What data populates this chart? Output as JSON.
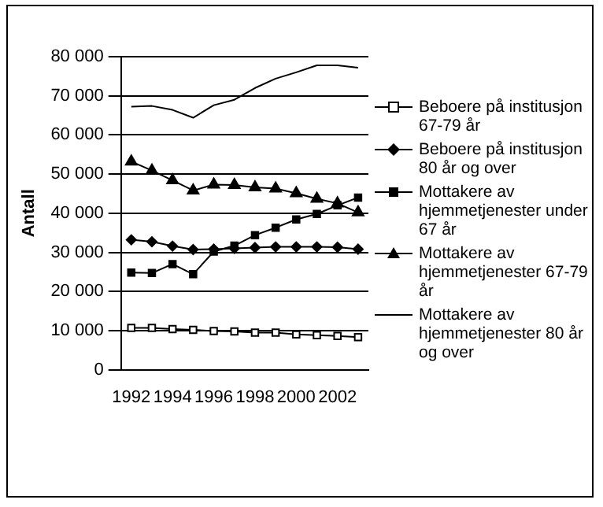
{
  "chart_data": {
    "type": "line",
    "ylabel": "Antall",
    "x": [
      1992,
      1993,
      1994,
      1995,
      1996,
      1997,
      1998,
      1999,
      2000,
      2001,
      2002,
      2003
    ],
    "xlim": [
      1991.5,
      2003.5
    ],
    "xticks": [
      1992,
      1994,
      1996,
      1998,
      2000,
      2002
    ],
    "ylim": [
      0,
      80000
    ],
    "yticks": [
      0,
      {
        "value": 10000,
        "label": "10 000"
      },
      {
        "value": 20000,
        "label": "20 000"
      },
      {
        "value": 30000,
        "label": "30 000"
      },
      {
        "value": 40000,
        "label": "40 000"
      },
      {
        "value": 50000,
        "label": "50 000"
      },
      {
        "value": 60000,
        "label": "60 000"
      },
      {
        "value": 70000,
        "label": "70 000"
      },
      {
        "value": 80000,
        "label": "80 000"
      }
    ],
    "grid": "y",
    "legend": "right",
    "series": [
      {
        "name": "Beboere på institusjon 67-79 år",
        "color": "#000000",
        "marker": "square_open",
        "values": [
          10700,
          10700,
          10400,
          10200,
          9900,
          9800,
          9500,
          9500,
          9000,
          8800,
          8600,
          8300
        ]
      },
      {
        "name": "Beboere på institusjon 80 år og over",
        "color": "#000000",
        "marker": "diamond",
        "values": [
          33200,
          32700,
          31600,
          30700,
          30800,
          31000,
          31200,
          31400,
          31400,
          31400,
          31300,
          30800
        ]
      },
      {
        "name": "Mottakere av hjemmetjenester under 67 år",
        "color": "#000000",
        "marker": "square",
        "values": [
          24800,
          24700,
          27000,
          24400,
          30200,
          31700,
          34400,
          36300,
          38400,
          39800,
          42000,
          44000
        ]
      },
      {
        "name": "Mottakere av hjemmetjenester 67-79 år",
        "color": "#000000",
        "marker": "triangle",
        "values": [
          53200,
          50900,
          48400,
          45800,
          47300,
          47200,
          46600,
          46300,
          45100,
          43700,
          42500,
          40200
        ]
      },
      {
        "name": "Mottakere av hjemmetjenester 80 år og over",
        "color": "#000000",
        "marker": "none",
        "values": [
          67200,
          67400,
          66400,
          64400,
          67600,
          69000,
          72000,
          74400,
          76000,
          77800,
          77800,
          77200
        ]
      }
    ]
  }
}
